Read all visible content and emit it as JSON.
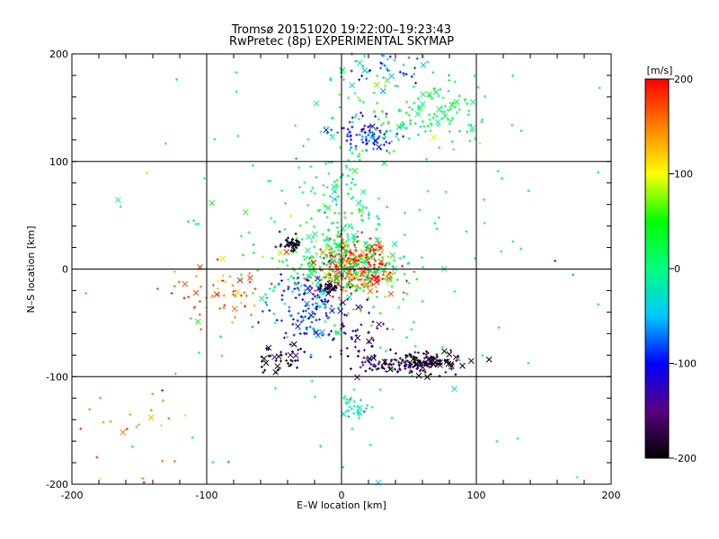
{
  "chart_data": {
    "type": "scatter",
    "title": "Tromsø 20151020 19:22:00–19:23:43",
    "subtitle": "RwPretec (8p) EXPERIMENTAL SKYMAP",
    "xlabel": "E–W location [km]",
    "ylabel": "N–S location [km]",
    "xlim": [
      -200,
      200
    ],
    "ylim": [
      -200,
      200
    ],
    "xticks": [
      -200,
      -100,
      0,
      100,
      200
    ],
    "yticks": [
      -200,
      -100,
      0,
      100,
      200
    ],
    "grid": true,
    "colorbar": {
      "label": "[m/s]",
      "range": [
        -200,
        200
      ],
      "ticks": [
        200,
        100,
        0,
        -100,
        -200
      ],
      "colormap": [
        "#000000",
        "#5a0080",
        "#0000ff",
        "#00c8ff",
        "#00ff80",
        "#00ff00",
        "#ffff00",
        "#ff8000",
        "#ff0000"
      ]
    },
    "clusters": [
      {
        "x": 8,
        "y": 2,
        "sx": 14,
        "sy": 12,
        "v": 180,
        "n": 260
      },
      {
        "x": 25,
        "y": -5,
        "sx": 8,
        "sy": 5,
        "v": 175,
        "n": 40
      },
      {
        "x": -2,
        "y": 5,
        "sx": 30,
        "sy": 22,
        "v": 25,
        "n": 260
      },
      {
        "x": -25,
        "y": -35,
        "sx": 14,
        "sy": 18,
        "v": -90,
        "n": 140
      },
      {
        "x": 55,
        "y": -87,
        "sx": 16,
        "sy": 5,
        "v": -195,
        "n": 180
      },
      {
        "x": 25,
        "y": -88,
        "sx": 6,
        "sy": 4,
        "v": -160,
        "n": 20
      },
      {
        "x": -45,
        "y": -85,
        "sx": 10,
        "sy": 8,
        "v": -200,
        "n": 40
      },
      {
        "x": 20,
        "y": 125,
        "sx": 12,
        "sy": 8,
        "v": -100,
        "n": 80
      },
      {
        "x": 65,
        "y": 145,
        "sx": 25,
        "sy": 20,
        "v": 20,
        "n": 130
      },
      {
        "x": 30,
        "y": 185,
        "sx": 20,
        "sy": 8,
        "v": -70,
        "n": 50
      },
      {
        "x": -38,
        "y": 24,
        "sx": 4,
        "sy": 3,
        "v": -200,
        "n": 40
      },
      {
        "x": -8,
        "y": -18,
        "sx": 4,
        "sy": 3,
        "v": -200,
        "n": 30
      },
      {
        "x": 10,
        "y": -130,
        "sx": 6,
        "sy": 8,
        "v": -30,
        "n": 30
      },
      {
        "x": -90,
        "y": -20,
        "sx": 18,
        "sy": 15,
        "v": 150,
        "n": 60
      },
      {
        "x": 0,
        "y": 80,
        "sx": 15,
        "sy": 45,
        "v": 5,
        "n": 120
      },
      {
        "x": 10,
        "y": -60,
        "sx": 12,
        "sy": 18,
        "v": -140,
        "n": 60
      },
      {
        "x": -150,
        "y": -150,
        "sx": 20,
        "sy": 30,
        "v": 150,
        "n": 25
      },
      {
        "x": 0,
        "y": 0,
        "sx": 110,
        "sy": 110,
        "v": 0,
        "n": 140
      }
    ]
  }
}
